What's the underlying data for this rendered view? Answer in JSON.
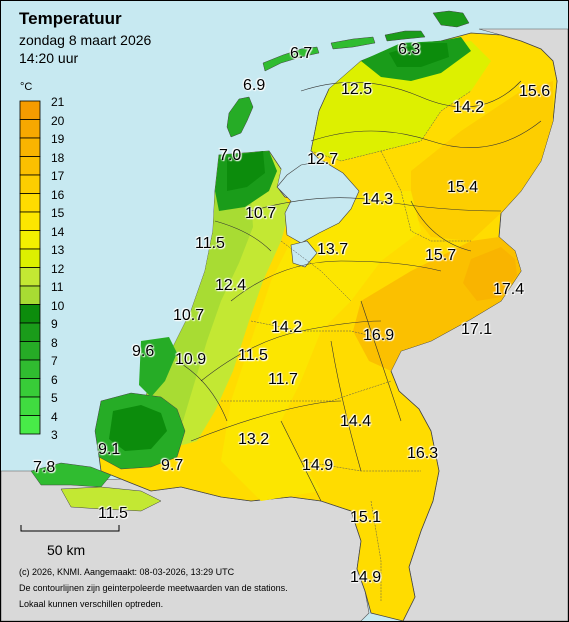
{
  "header": {
    "title": "Temperatuur",
    "date": "zondag 8 maart 2026",
    "time": "14:20 uur"
  },
  "legend": {
    "unit": "°C",
    "ticks": [
      "21",
      "20",
      "19",
      "18",
      "17",
      "16",
      "15",
      "14",
      "13",
      "12",
      "11",
      "10",
      "9",
      "8",
      "7",
      "6",
      "5",
      "4",
      "3"
    ],
    "colors": {
      "c20": "#f59b00",
      "c19": "#f7a800",
      "c18": "#f9b400",
      "c17": "#fbc000",
      "c16": "#fdce00",
      "c15": "#ffdc00",
      "c14": "#fce600",
      "c13": "#f2f000",
      "c12": "#ddf000",
      "c11": "#c3e833",
      "c10": "#a8dc33",
      "c9": "#0c8c0c",
      "c8": "#1a9c1a",
      "c7": "#26ac26",
      "c6": "#30bc30",
      "c5": "#38cc38",
      "c4": "#40dc40",
      "c3": "#48ec48"
    }
  },
  "stations": [
    {
      "id": "terschelling",
      "value": "6.7"
    },
    {
      "id": "lauwersoog",
      "value": "6.3"
    },
    {
      "id": "vlieland",
      "value": "6.9"
    },
    {
      "id": "leeuwarden",
      "value": "12.5"
    },
    {
      "id": "nieuw-beerta",
      "value": "15.6"
    },
    {
      "id": "eelde",
      "value": "14.2"
    },
    {
      "id": "de-kooy",
      "value": "7.0"
    },
    {
      "id": "stavoren",
      "value": "12.7"
    },
    {
      "id": "marknesse",
      "value": "14.3"
    },
    {
      "id": "berkhout",
      "value": "10.7"
    },
    {
      "id": "hoogeveen",
      "value": "15.4"
    },
    {
      "id": "ijmuiden",
      "value": "11.5"
    },
    {
      "id": "lelystad",
      "value": "13.7"
    },
    {
      "id": "heino",
      "value": "15.7"
    },
    {
      "id": "schiphol",
      "value": "12.4"
    },
    {
      "id": "twenthe",
      "value": "17.4"
    },
    {
      "id": "valkenburg",
      "value": "10.7"
    },
    {
      "id": "de-bilt",
      "value": "14.2"
    },
    {
      "id": "deelen",
      "value": "16.9"
    },
    {
      "id": "hupsel",
      "value": "17.1"
    },
    {
      "id": "hoek-van-holland",
      "value": "9.6"
    },
    {
      "id": "rotterdam",
      "value": "10.9"
    },
    {
      "id": "cabauw",
      "value": "11.5"
    },
    {
      "id": "herwijnen",
      "value": "11.7"
    },
    {
      "id": "volkel",
      "value": "14.4"
    },
    {
      "id": "wilhelminadorp",
      "value": "9.1"
    },
    {
      "id": "arcen",
      "value": "16.3"
    },
    {
      "id": "gilze-rijen",
      "value": "13.2"
    },
    {
      "id": "vlissingen",
      "value": "7.8"
    },
    {
      "id": "woensdrecht",
      "value": "9.7"
    },
    {
      "id": "eindhoven",
      "value": "14.9"
    },
    {
      "id": "westdorpe",
      "value": "11.5"
    },
    {
      "id": "ell",
      "value": "15.1"
    },
    {
      "id": "maastricht",
      "value": "14.9"
    }
  ],
  "scale": {
    "label": "50 km"
  },
  "footer": {
    "line1": "(c) 2026, KNMI. Aangemaakt: 08-03-2026, 13:29 UTC",
    "line2": "De contourlijnen zijn geinterpoleerde meetwaarden van de stations.",
    "line3": "Lokaal kunnen verschillen optreden."
  }
}
